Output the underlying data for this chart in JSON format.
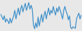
{
  "values": [
    42,
    35,
    28,
    38,
    22,
    30,
    25,
    18,
    32,
    20,
    28,
    38,
    52,
    30,
    45,
    58,
    40,
    55,
    65,
    48,
    60,
    70,
    52,
    62,
    72,
    55,
    65,
    55,
    15,
    5,
    20,
    8,
    35,
    12,
    28,
    42,
    22,
    38,
    50,
    30,
    45,
    58,
    40,
    52,
    45,
    62,
    50,
    40,
    58,
    48,
    62,
    52,
    42,
    30,
    52,
    62,
    50,
    42,
    28,
    38,
    8,
    5,
    10,
    8,
    6,
    30,
    38,
    45,
    30,
    40
  ],
  "line_color": "#3d8fc9",
  "background_color": "#e8e8e8",
  "linewidth": 0.9
}
